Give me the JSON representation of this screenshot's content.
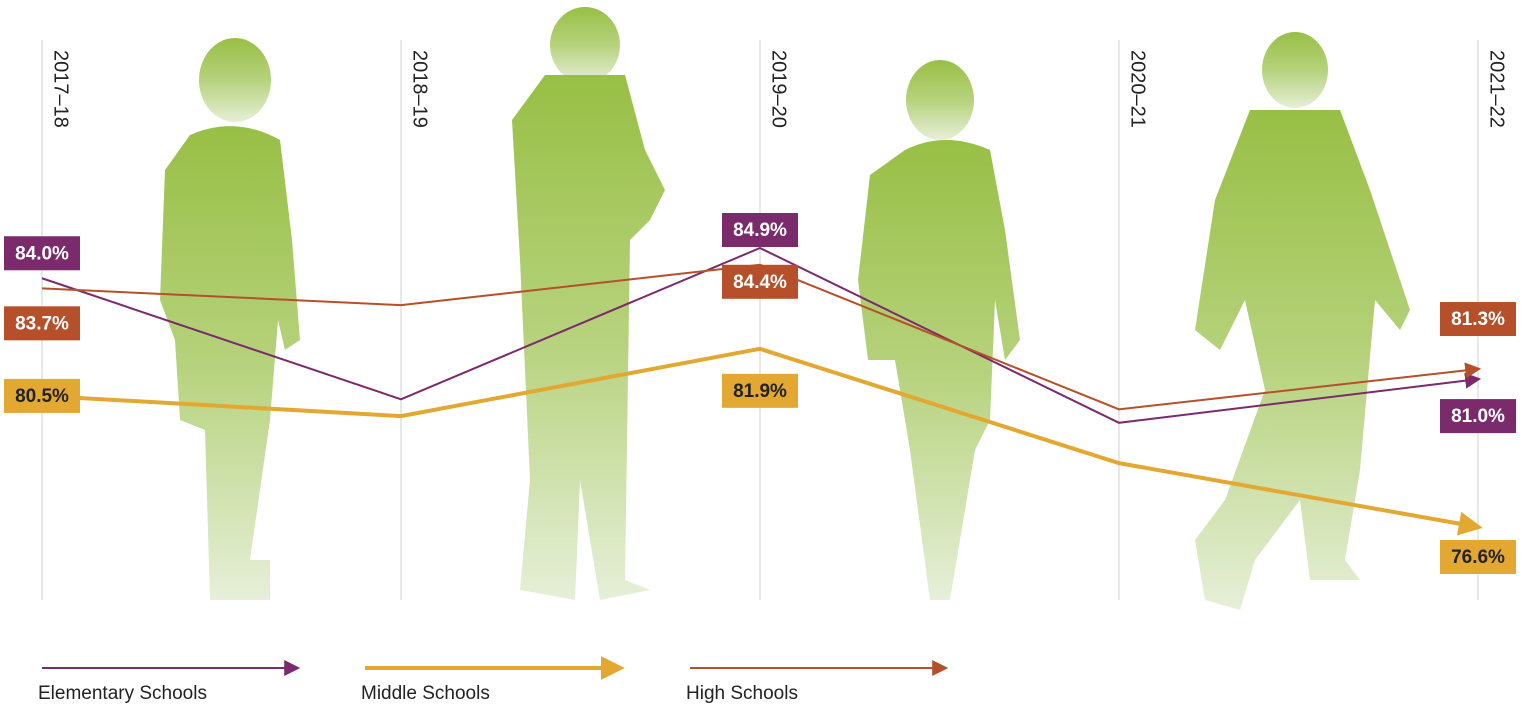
{
  "chart_data": {
    "type": "line",
    "categories": [
      "2017–18",
      "2018–19",
      "2019–20",
      "2020–21",
      "2021–22"
    ],
    "series": [
      {
        "name": "Elementary Schools",
        "color": "#7b2a6b",
        "values": [
          84.0,
          80.4,
          84.9,
          79.7,
          81.0
        ],
        "value_labels": [
          "84.0%",
          null,
          "84.9%",
          null,
          "81.0%"
        ]
      },
      {
        "name": "Middle Schools",
        "color": "#e3a832",
        "values": [
          80.5,
          79.9,
          81.9,
          78.5,
          76.6
        ],
        "value_labels": [
          "80.5%",
          null,
          "81.9%",
          null,
          "76.6%"
        ]
      },
      {
        "name": "High Schools",
        "color": "#b5502a",
        "values": [
          83.7,
          83.2,
          84.4,
          80.1,
          81.3
        ],
        "value_labels": [
          "83.7%",
          null,
          "84.4%",
          null,
          "81.3%"
        ]
      }
    ]
  }
}
